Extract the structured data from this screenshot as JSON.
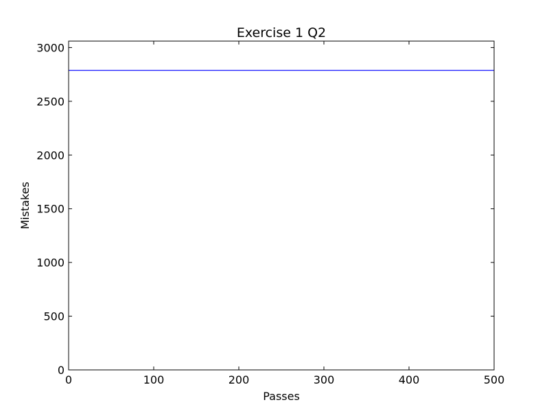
{
  "chart_data": {
    "type": "line",
    "title": "Exercise 1 Q2",
    "xlabel": "Passes",
    "ylabel": "Mistakes",
    "xlim": [
      0,
      500
    ],
    "ylim": [
      0,
      3060
    ],
    "xticks": [
      0,
      100,
      200,
      300,
      400,
      500
    ],
    "yticks": [
      0,
      500,
      1000,
      1500,
      2000,
      2500,
      3000
    ],
    "xtick_labels": [
      "0",
      "100",
      "200",
      "300",
      "400",
      "500"
    ],
    "ytick_labels": [
      "0",
      "500",
      "1000",
      "1500",
      "2000",
      "2500",
      "3000"
    ],
    "grid": false,
    "series": [
      {
        "color": "#0000ff",
        "x": [
          0,
          500
        ],
        "y": [
          2788,
          2788
        ]
      }
    ]
  }
}
